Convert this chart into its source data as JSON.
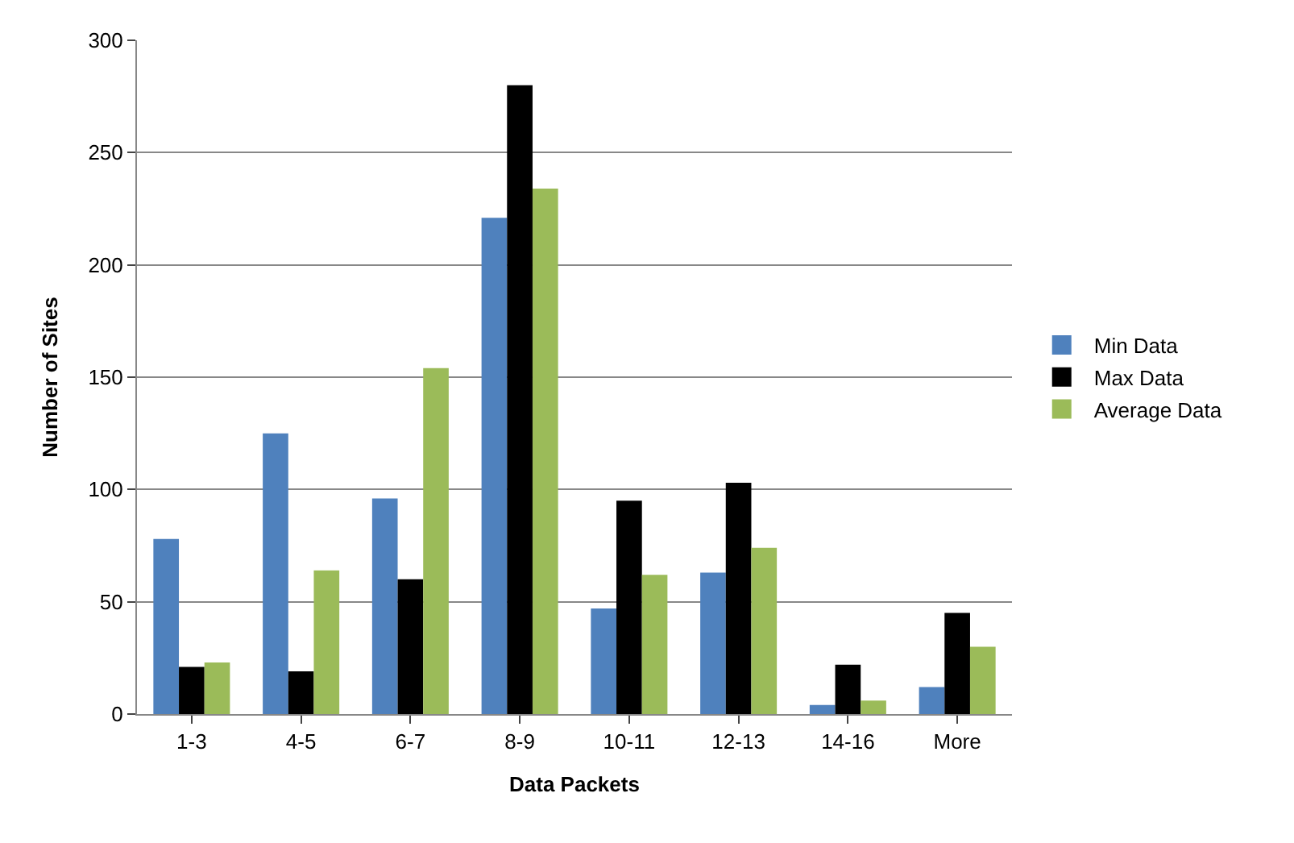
{
  "chart_data": {
    "type": "bar",
    "xlabel": "Data Packets",
    "ylabel": "Number of Sites",
    "categories": [
      "1-3",
      "4-5",
      "6-7",
      "8-9",
      "10-11",
      "12-13",
      "14-16",
      "More"
    ],
    "series": [
      {
        "name": "Min Data",
        "color": "#4f81bd",
        "values": [
          78,
          125,
          96,
          221,
          47,
          63,
          4,
          12
        ]
      },
      {
        "name": "Max Data",
        "color": "#000000",
        "values": [
          21,
          19,
          60,
          280,
          95,
          103,
          22,
          45
        ]
      },
      {
        "name": "Average Data",
        "color": "#9bbb59",
        "values": [
          23,
          64,
          154,
          234,
          62,
          74,
          6,
          30
        ]
      }
    ],
    "ylim": [
      0,
      300
    ],
    "yticks": [
      0,
      50,
      100,
      150,
      200,
      250,
      300
    ],
    "grid": "y",
    "legend": "right"
  }
}
